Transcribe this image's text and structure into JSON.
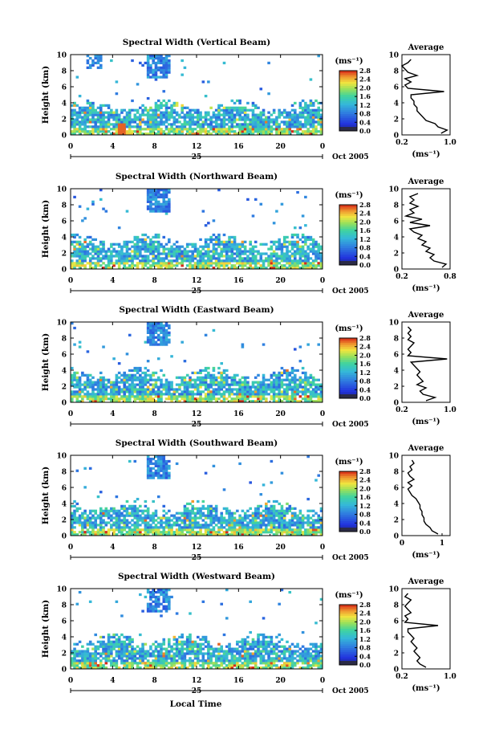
{
  "figure": {
    "panels": [
      {
        "title": "Spectral Width (Vertical Beam)",
        "ylabel": "Height (km)",
        "date_label": "Oct 2005",
        "day_label": "25",
        "cb_unit": "(ms⁻¹)",
        "avg_title": "Average",
        "avg_xticks": [
          "0.2",
          "1.0"
        ],
        "avg_unit": "(ms⁻¹)"
      },
      {
        "title": "Spectral Width (Northward Beam)",
        "ylabel": "Height (km)",
        "date_label": "Oct 2005",
        "day_label": "25",
        "cb_unit": "(ms⁻¹)",
        "avg_title": "Average",
        "avg_xticks": [
          "0.2",
          "0.8"
        ],
        "avg_unit": "(ms⁻¹)"
      },
      {
        "title": "Spectral Width (Eastward Beam)",
        "ylabel": "Height (km)",
        "date_label": "Oct 2005",
        "day_label": "25",
        "cb_unit": "(ms⁻¹)",
        "avg_title": "Average",
        "avg_xticks": [
          "0.2",
          "1.0"
        ],
        "avg_unit": "(ms⁻¹)"
      },
      {
        "title": "Spectral Width (Southward Beam)",
        "ylabel": "Height (km)",
        "date_label": "Oct 2005",
        "day_label": "25",
        "cb_unit": "(ms⁻¹)",
        "avg_title": "Average",
        "avg_xticks": [
          "0",
          "1"
        ],
        "avg_unit": "(ms⁻¹)"
      },
      {
        "title": "Spectral Width (Westward Beam)",
        "ylabel": "Height (km)",
        "date_label": "Oct 2005",
        "day_label": "25",
        "cb_unit": "(ms⁻¹)",
        "avg_title": "Average",
        "avg_xticks": [
          "0.2",
          "1.0"
        ],
        "avg_unit": "(ms⁻¹)"
      }
    ],
    "xlabel": "Local Time"
  },
  "chart_data": [
    {
      "type": "heatmap",
      "title": "Spectral Width (Vertical Beam)",
      "xlabel": "",
      "ylabel": "Height (km)",
      "xlim": [
        0,
        24
      ],
      "ylim": [
        0,
        10
      ],
      "xticks": [
        "0",
        "4",
        "8",
        "12",
        "16",
        "20",
        "0"
      ],
      "yticks": [
        "0",
        "2",
        "4",
        "6",
        "8",
        "10"
      ],
      "colorbar": {
        "unit": "(ms⁻¹)",
        "ticks": [
          "0.0",
          "0.4",
          "0.8",
          "1.2",
          "1.6",
          "2.0",
          "2.4",
          "2.8"
        ],
        "range": [
          0,
          2.8
        ]
      }
    },
    {
      "type": "heatmap",
      "title": "Spectral Width (Northward Beam)",
      "xlabel": "",
      "ylabel": "Height (km)",
      "xlim": [
        0,
        24
      ],
      "ylim": [
        0,
        10
      ],
      "xticks": [
        "0",
        "4",
        "8",
        "12",
        "16",
        "20",
        "0"
      ],
      "yticks": [
        "0",
        "2",
        "4",
        "6",
        "8",
        "10"
      ],
      "colorbar": {
        "unit": "(ms⁻¹)",
        "ticks": [
          "0.0",
          "0.4",
          "0.8",
          "1.2",
          "1.6",
          "2.0",
          "2.4",
          "2.8"
        ],
        "range": [
          0,
          2.8
        ]
      }
    },
    {
      "type": "heatmap",
      "title": "Spectral Width (Eastward Beam)",
      "xlabel": "",
      "ylabel": "Height (km)",
      "xlim": [
        0,
        24
      ],
      "ylim": [
        0,
        10
      ],
      "xticks": [
        "0",
        "4",
        "8",
        "12",
        "16",
        "20",
        "0"
      ],
      "yticks": [
        "0",
        "2",
        "4",
        "6",
        "8",
        "10"
      ],
      "colorbar": {
        "unit": "(ms⁻¹)",
        "ticks": [
          "0.0",
          "0.4",
          "0.8",
          "1.2",
          "1.6",
          "2.0",
          "2.4",
          "2.8"
        ],
        "range": [
          0,
          2.8
        ]
      }
    },
    {
      "type": "heatmap",
      "title": "Spectral Width (Southward Beam)",
      "xlabel": "",
      "ylabel": "Height (km)",
      "xlim": [
        0,
        24
      ],
      "ylim": [
        0,
        10
      ],
      "xticks": [
        "0",
        "4",
        "8",
        "12",
        "16",
        "20",
        "0"
      ],
      "yticks": [
        "0",
        "2",
        "4",
        "6",
        "8",
        "10"
      ],
      "colorbar": {
        "unit": "(ms⁻¹)",
        "ticks": [
          "0.0",
          "0.4",
          "0.8",
          "1.2",
          "1.6",
          "2.0",
          "2.4",
          "2.8"
        ],
        "range": [
          0,
          2.8
        ]
      }
    },
    {
      "type": "heatmap",
      "title": "Spectral Width (Westward Beam)",
      "xlabel": "Local Time",
      "ylabel": "Height (km)",
      "xlim": [
        0,
        24
      ],
      "ylim": [
        0,
        10
      ],
      "xticks": [
        "0",
        "4",
        "8",
        "12",
        "16",
        "20",
        "0"
      ],
      "yticks": [
        "0",
        "2",
        "4",
        "6",
        "8",
        "10"
      ],
      "colorbar": {
        "unit": "(ms⁻¹)",
        "ticks": [
          "0.0",
          "0.4",
          "0.8",
          "1.2",
          "1.6",
          "2.0",
          "2.4",
          "2.8"
        ],
        "range": [
          0,
          2.8
        ]
      }
    },
    {
      "type": "line",
      "title": "Average",
      "xlabel": "(ms⁻¹)",
      "ylabel": "",
      "xlim": [
        0.2,
        1.0
      ],
      "ylim": [
        0,
        10
      ],
      "xticks": [
        "0.2",
        "1.0"
      ],
      "yticks": [
        "0",
        "2",
        "4",
        "6",
        "8",
        "10"
      ],
      "x": [
        0.85,
        0.95,
        0.8,
        0.75,
        0.6,
        0.55,
        0.5,
        0.45,
        0.45,
        0.4,
        0.4,
        0.35,
        0.35,
        0.9,
        0.3,
        0.25,
        0.35,
        0.25,
        0.45,
        0.3,
        0.25,
        0.2,
        0.3,
        0.35
      ],
      "y": [
        0.2,
        0.6,
        1.0,
        1.4,
        1.8,
        2.2,
        2.6,
        3.0,
        3.4,
        3.8,
        4.2,
        4.6,
        5.0,
        5.4,
        5.8,
        6.2,
        6.6,
        7.0,
        7.4,
        7.8,
        8.2,
        8.6,
        9.0,
        9.4
      ]
    },
    {
      "type": "line",
      "title": "Average",
      "xlabel": "(ms⁻¹)",
      "ylabel": "",
      "xlim": [
        0.2,
        0.8
      ],
      "ylim": [
        0,
        10
      ],
      "xticks": [
        "0.2",
        "0.8"
      ],
      "yticks": [
        "0",
        "2",
        "4",
        "6",
        "8",
        "10"
      ],
      "x": [
        0.7,
        0.75,
        0.6,
        0.55,
        0.6,
        0.5,
        0.55,
        0.45,
        0.5,
        0.4,
        0.45,
        0.35,
        0.3,
        0.55,
        0.3,
        0.45,
        0.25,
        0.35,
        0.3,
        0.4,
        0.3,
        0.35,
        0.3,
        0.4
      ],
      "y": [
        0.2,
        0.6,
        1.0,
        1.4,
        1.8,
        2.2,
        2.6,
        3.0,
        3.4,
        3.8,
        4.2,
        4.6,
        5.0,
        5.4,
        5.8,
        6.2,
        6.6,
        7.0,
        7.4,
        7.8,
        8.2,
        8.6,
        9.0,
        9.4
      ]
    },
    {
      "type": "line",
      "title": "Average",
      "xlabel": "(ms⁻¹)",
      "ylabel": "",
      "xlim": [
        0.2,
        1.0
      ],
      "ylim": [
        0,
        10
      ],
      "xticks": [
        "0.2",
        "1.0"
      ],
      "yticks": [
        "0",
        "2",
        "4",
        "6",
        "8",
        "10"
      ],
      "x": [
        0.6,
        0.75,
        0.55,
        0.5,
        0.6,
        0.45,
        0.55,
        0.5,
        0.45,
        0.5,
        0.45,
        0.4,
        0.35,
        0.95,
        0.3,
        0.35,
        0.3,
        0.35,
        0.4,
        0.3,
        0.35,
        0.3,
        0.35,
        0.3
      ],
      "y": [
        0.2,
        0.6,
        1.0,
        1.4,
        1.8,
        2.2,
        2.6,
        3.0,
        3.4,
        3.8,
        4.2,
        4.6,
        5.0,
        5.4,
        5.8,
        6.2,
        6.6,
        7.0,
        7.4,
        7.8,
        8.2,
        8.6,
        9.0,
        9.4
      ]
    },
    {
      "type": "line",
      "title": "Average",
      "xlabel": "(ms⁻¹)",
      "ylabel": "",
      "xlim": [
        0,
        1.2
      ],
      "ylim": [
        0,
        10
      ],
      "xticks": [
        "0",
        "1"
      ],
      "yticks": [
        "0",
        "2",
        "4",
        "6",
        "8",
        "10"
      ],
      "x": [
        0.9,
        0.75,
        0.7,
        0.6,
        0.55,
        0.55,
        0.5,
        0.5,
        0.45,
        0.45,
        0.4,
        0.35,
        0.25,
        0.2,
        0.15,
        0.25,
        0.15,
        0.3,
        0.2,
        0.15,
        0.25,
        0.2,
        0.3,
        0.25
      ],
      "y": [
        0.2,
        0.6,
        1.0,
        1.4,
        1.8,
        2.2,
        2.6,
        3.0,
        3.4,
        3.8,
        4.2,
        4.6,
        5.0,
        5.4,
        5.8,
        6.2,
        6.6,
        7.0,
        7.4,
        7.8,
        8.2,
        8.6,
        9.0,
        9.4
      ]
    },
    {
      "type": "line",
      "title": "Average",
      "xlabel": "(ms⁻¹)",
      "ylabel": "",
      "xlim": [
        0.2,
        1.0
      ],
      "ylim": [
        0,
        10
      ],
      "xticks": [
        "0.2",
        "1.0"
      ],
      "yticks": [
        "0",
        "2",
        "4",
        "6",
        "8",
        "10"
      ],
      "x": [
        0.6,
        0.5,
        0.45,
        0.5,
        0.45,
        0.4,
        0.45,
        0.4,
        0.35,
        0.4,
        0.35,
        0.3,
        0.3,
        0.8,
        0.25,
        0.3,
        0.25,
        0.35,
        0.3,
        0.25,
        0.3,
        0.35,
        0.25,
        0.3
      ],
      "y": [
        0.2,
        0.6,
        1.0,
        1.4,
        1.8,
        2.2,
        2.6,
        3.0,
        3.4,
        3.8,
        4.2,
        4.6,
        5.0,
        5.4,
        5.8,
        6.2,
        6.6,
        7.0,
        7.4,
        7.8,
        8.2,
        8.6,
        9.0,
        9.4
      ]
    }
  ]
}
